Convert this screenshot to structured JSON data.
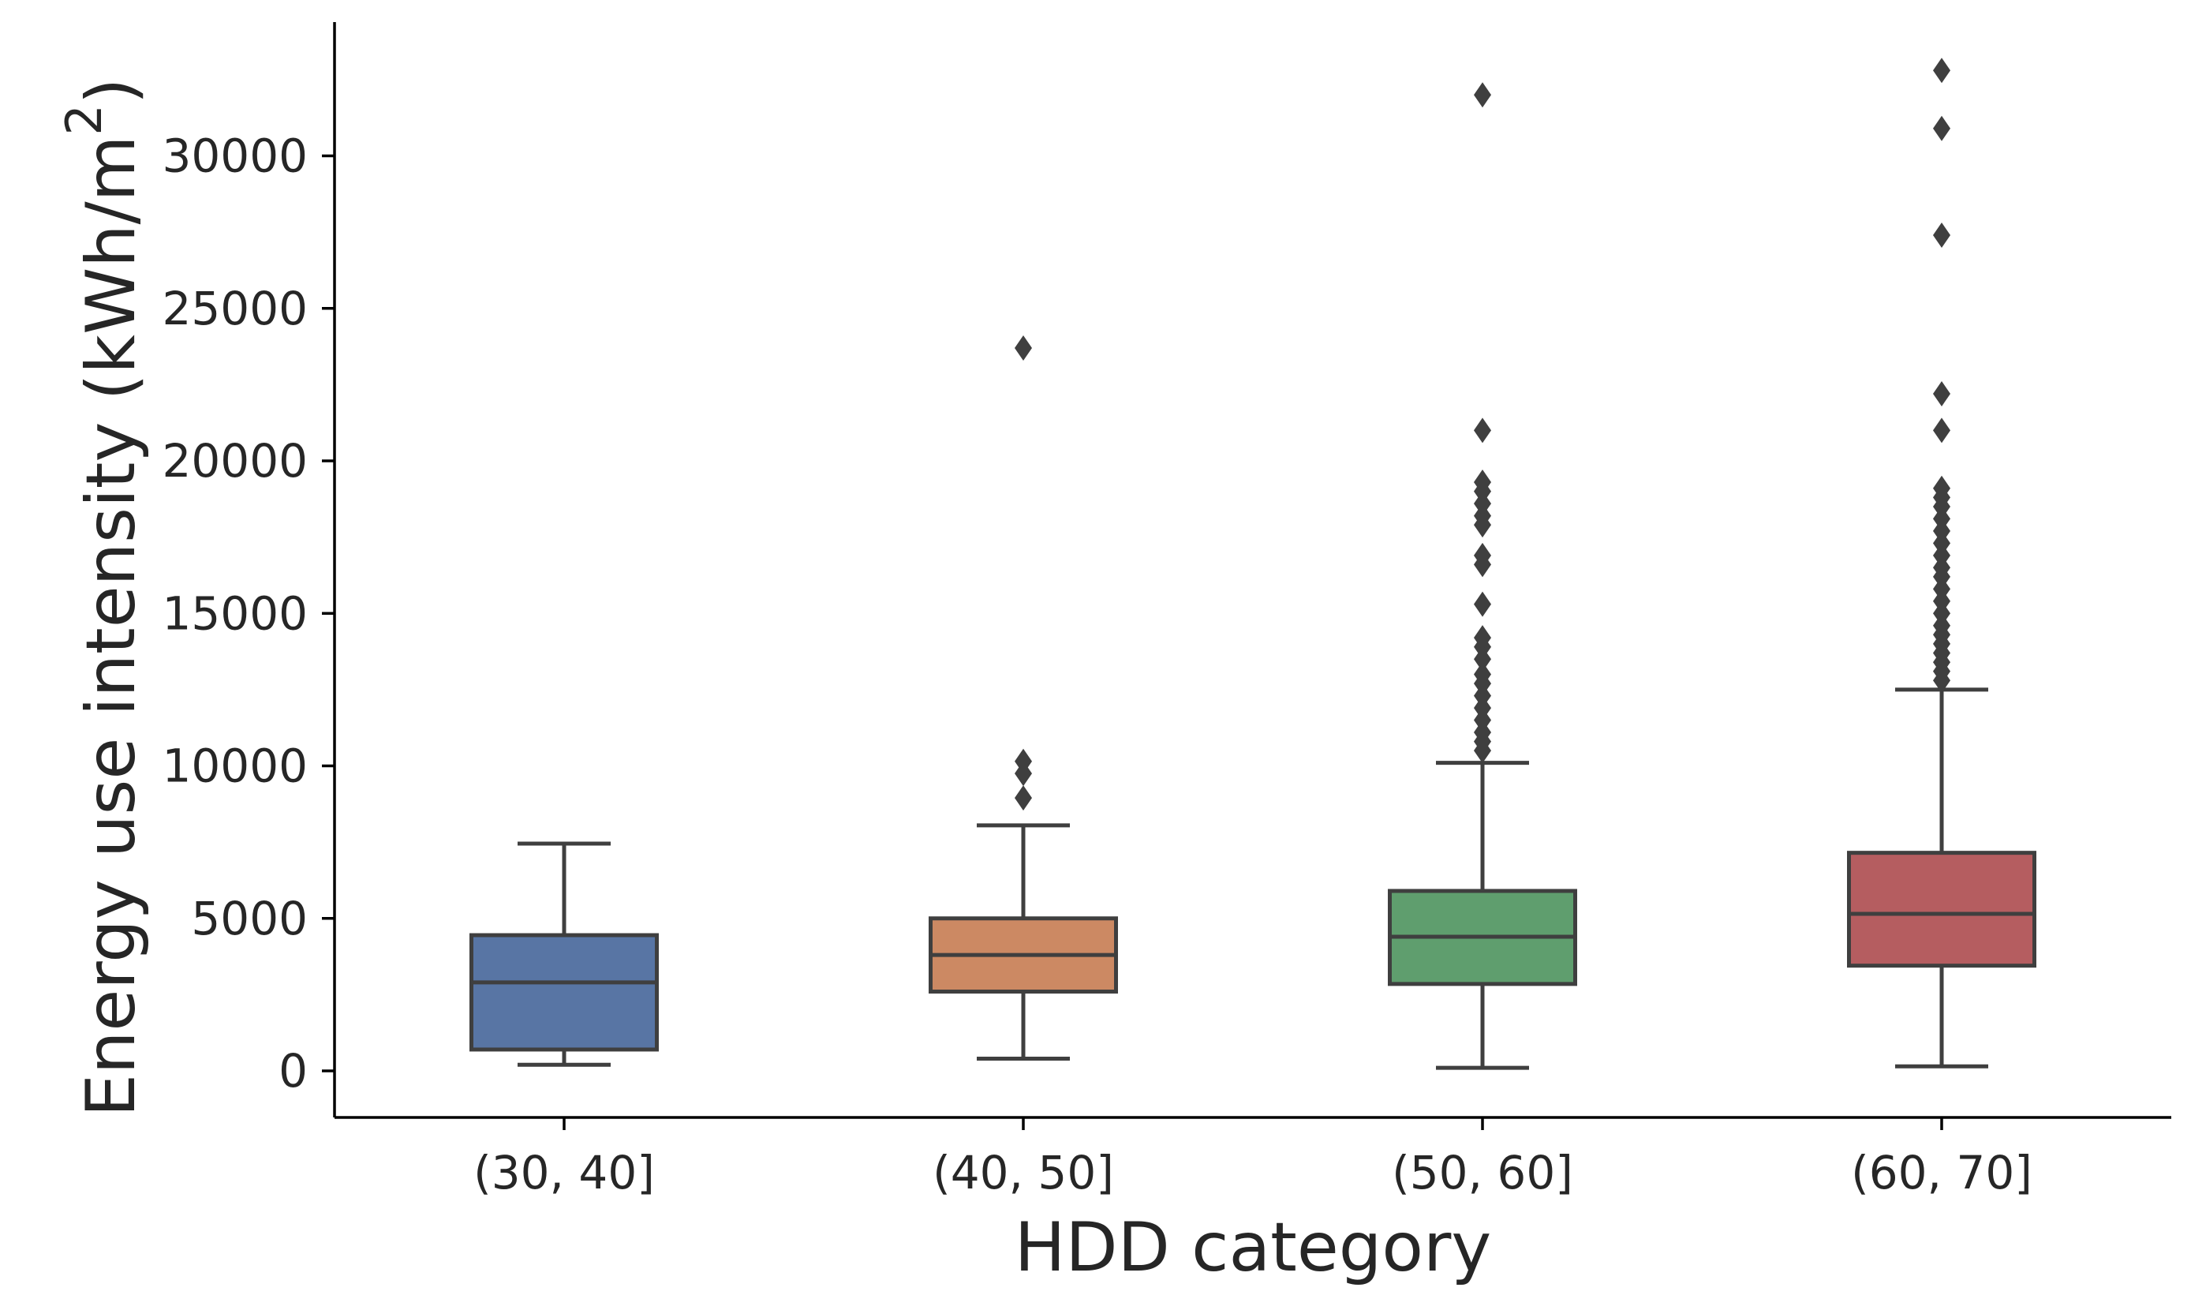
{
  "chart_data": {
    "type": "box",
    "xlabel": "HDD category",
    "ylabel_prefix": "Energy use intensity (kWh/m",
    "ylabel_superscript": "2",
    "ylabel_suffix": ")",
    "ylim": [
      -1500,
      34000
    ],
    "yticks": [
      0,
      5000,
      10000,
      15000,
      20000,
      25000,
      30000
    ],
    "ytick_labels": [
      "0",
      "5000",
      "10000",
      "15000",
      "20000",
      "25000",
      "30000"
    ],
    "grid": false,
    "categories": [
      "(30, 40]",
      "(40, 50]",
      "(50, 60]",
      "(60, 70]"
    ],
    "boxes": [
      {
        "category": "(30, 40]",
        "color": "#5875a4",
        "whisker_low": 200,
        "q1": 700,
        "median": 2900,
        "q3": 4450,
        "whisker_high": 7450,
        "fliers": []
      },
      {
        "category": "(40, 50]",
        "color": "#cc8963",
        "whisker_low": 400,
        "q1": 2600,
        "median": 3800,
        "q3": 5000,
        "whisker_high": 8050,
        "fliers": [
          8950,
          9750,
          10150,
          23700
        ]
      },
      {
        "category": "(50, 60]",
        "color": "#5f9e6e",
        "whisker_low": 100,
        "q1": 2850,
        "median": 4400,
        "q3": 5900,
        "whisker_high": 10100,
        "fliers": [
          10500,
          10800,
          11100,
          11500,
          11900,
          12300,
          12700,
          13000,
          13500,
          13900,
          14200,
          15300,
          16600,
          16900,
          17900,
          18200,
          18600,
          19000,
          19300,
          21000,
          32000
        ]
      },
      {
        "category": "(60, 70]",
        "color": "#b55d60",
        "whisker_low": 150,
        "q1": 3450,
        "median": 5150,
        "q3": 7150,
        "whisker_high": 12500,
        "fliers": [
          12800,
          13100,
          13400,
          13700,
          14000,
          14300,
          14600,
          15000,
          15400,
          15800,
          16200,
          16500,
          16900,
          17300,
          17700,
          18100,
          18500,
          18800,
          19100,
          21000,
          22200,
          27400,
          30900,
          32800
        ]
      }
    ]
  }
}
